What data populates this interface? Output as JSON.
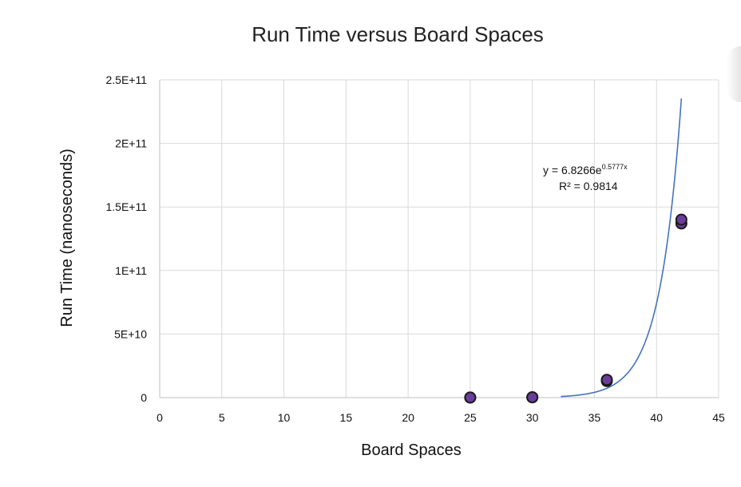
{
  "chart_data": {
    "type": "scatter",
    "title": "Run Time versus Board Spaces",
    "xlabel": "Board Spaces",
    "ylabel": "Run Time (nanoseconds)",
    "xlim": [
      0,
      45
    ],
    "ylim": [
      0,
      250000000000
    ],
    "x_ticks": [
      0,
      5,
      10,
      15,
      20,
      25,
      30,
      35,
      40,
      45
    ],
    "x_tick_labels": [
      "0",
      "5",
      "10",
      "15",
      "20",
      "25",
      "30",
      "35",
      "40",
      "45"
    ],
    "y_ticks": [
      0,
      50000000000,
      100000000000,
      150000000000,
      200000000000,
      250000000000
    ],
    "y_tick_labels": [
      "0",
      "5E+10",
      "1E+11",
      "1.5E+11",
      "2E+11",
      "2.5E+11"
    ],
    "grid": true,
    "series": [
      {
        "points": [
          {
            "x": 25,
            "y": 30000000
          },
          {
            "x": 25,
            "y": 40000000
          },
          {
            "x": 30,
            "y": 200000000
          },
          {
            "x": 30,
            "y": 250000000
          },
          {
            "x": 36,
            "y": 13000000000
          },
          {
            "x": 36,
            "y": 14000000000
          },
          {
            "x": 42,
            "y": 137000000000
          },
          {
            "x": 42,
            "y": 140000000000
          }
        ],
        "marker_fill": "#6a3d9a",
        "marker_edge": "#1a1a1a"
      }
    ],
    "trendline": {
      "type": "exponential",
      "a": 6.8266,
      "b": 0.5777,
      "x_range": [
        32.3,
        42
      ],
      "color": "#4472c4",
      "equation_prefix": "y = 6.8266e",
      "equation_exponent": "0.5777x",
      "r_squared": "R² = 0.9814"
    },
    "colors": {
      "grid": "#d9d9d9",
      "axis": "#bfbfbf"
    }
  }
}
